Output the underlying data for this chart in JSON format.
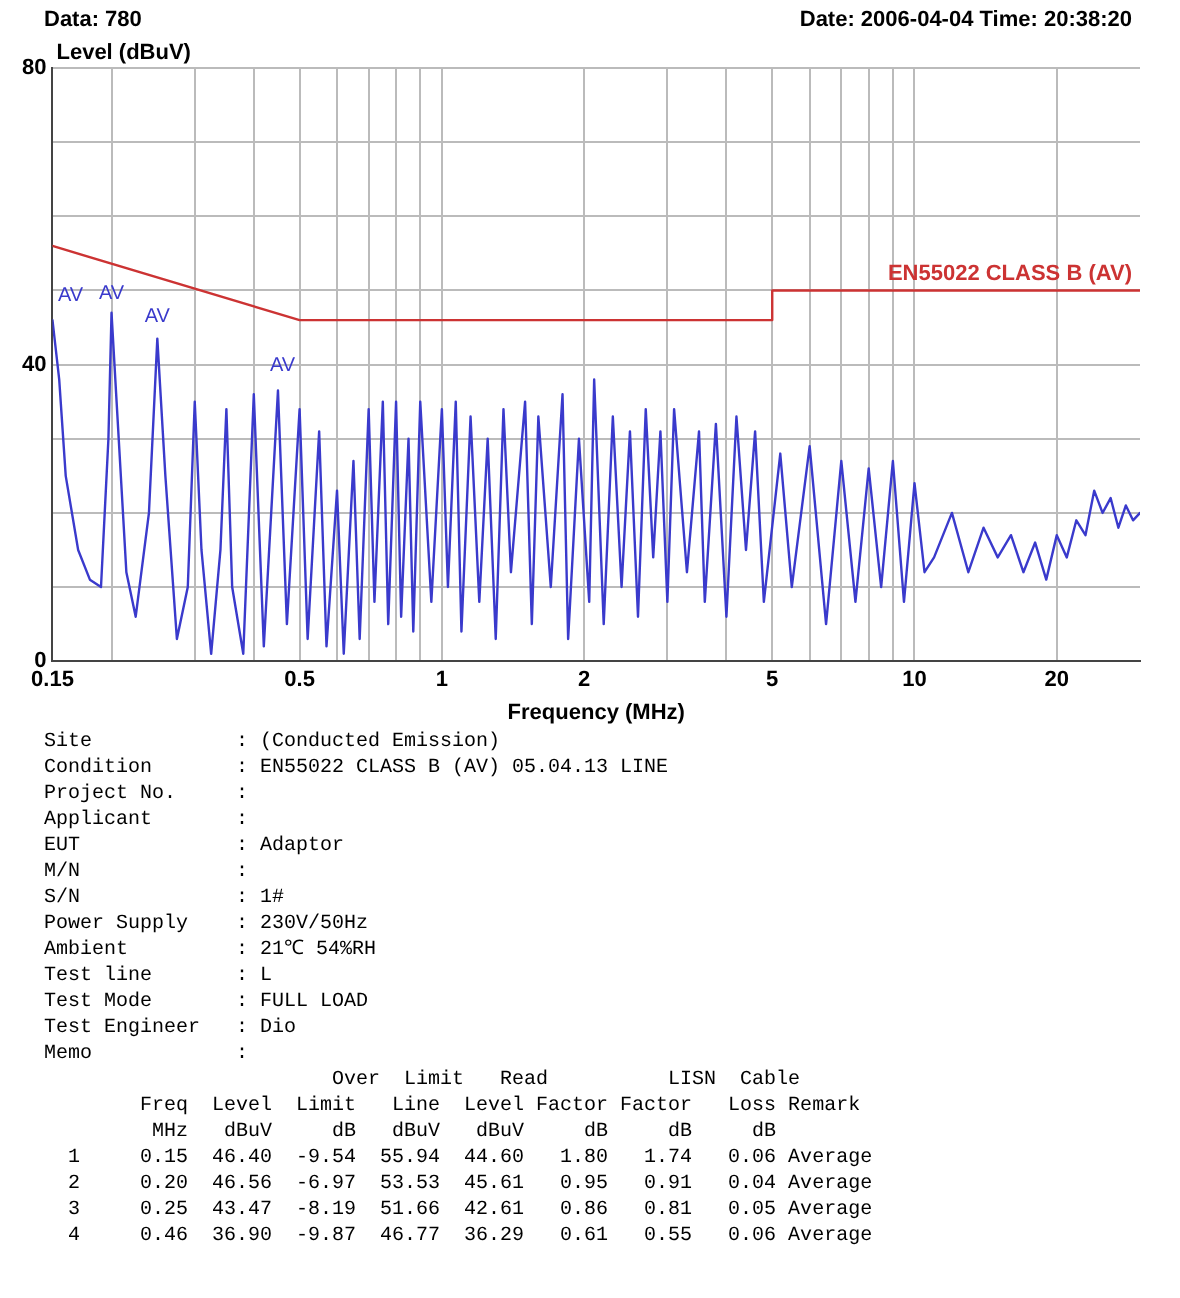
{
  "chart_data": {
    "type": "line",
    "title": "Data: 780",
    "subtitle": "Date: 2006-04-04  Time: 20:38:20",
    "xlabel": "Frequency (MHz)",
    "ylabel": "Level (dBuV)",
    "log": "x",
    "grid": true,
    "legend": false,
    "marker": "none",
    "xlim": [
      0.15,
      30
    ],
    "xticks": [
      0.15,
      {
        "value": 0.2,
        "label": null
      },
      {
        "value": 0.3,
        "label": null
      },
      {
        "value": 0.4,
        "label": null
      },
      0.5,
      {
        "value": 0.6,
        "label": null
      },
      {
        "value": 0.7,
        "label": null
      },
      {
        "value": 0.8,
        "label": null
      },
      {
        "value": 0.9,
        "label": null
      },
      1,
      2,
      {
        "value": 3,
        "label": null
      },
      {
        "value": 4,
        "label": null
      },
      5,
      {
        "value": 6,
        "label": null
      },
      {
        "value": 7,
        "label": null
      },
      {
        "value": 8,
        "label": null
      },
      {
        "value": 9,
        "label": null
      },
      10,
      20
    ],
    "ylim": [
      0,
      80
    ],
    "yticks": [
      0,
      {
        "value": 10,
        "label": null
      },
      {
        "value": 20,
        "label": null
      },
      {
        "value": 30,
        "label": null
      },
      40,
      {
        "value": 50,
        "label": null
      },
      {
        "value": 60,
        "label": null
      },
      {
        "value": 70,
        "label": null
      },
      80
    ],
    "series": [
      {
        "color": "#3a3acc",
        "x": [
          0.15,
          0.155,
          0.16,
          0.17,
          0.18,
          0.19,
          0.197,
          0.2,
          0.205,
          0.215,
          0.225,
          0.24,
          0.25,
          0.26,
          0.275,
          0.29,
          0.3,
          0.31,
          0.325,
          0.34,
          0.35,
          0.36,
          0.38,
          0.4,
          0.42,
          0.45,
          0.47,
          0.5,
          0.52,
          0.55,
          0.57,
          0.6,
          0.62,
          0.65,
          0.67,
          0.7,
          0.72,
          0.75,
          0.77,
          0.8,
          0.82,
          0.85,
          0.87,
          0.9,
          0.95,
          1.0,
          1.03,
          1.07,
          1.1,
          1.15,
          1.2,
          1.25,
          1.3,
          1.35,
          1.4,
          1.5,
          1.55,
          1.6,
          1.7,
          1.8,
          1.85,
          1.95,
          2.05,
          2.1,
          2.2,
          2.3,
          2.4,
          2.5,
          2.6,
          2.7,
          2.8,
          2.9,
          3.0,
          3.1,
          3.3,
          3.5,
          3.6,
          3.8,
          4.0,
          4.2,
          4.4,
          4.6,
          4.8,
          5.2,
          5.5,
          6.0,
          6.5,
          7.0,
          7.5,
          8.0,
          8.5,
          9.0,
          9.5,
          10,
          10.5,
          11,
          12,
          13,
          14,
          15,
          16,
          17,
          18,
          19,
          20,
          21,
          22,
          23,
          24,
          25,
          26,
          27,
          28,
          29,
          30
        ],
        "values": [
          46,
          38,
          25,
          15,
          11,
          10,
          30,
          47,
          35,
          12,
          6,
          20,
          43.5,
          25,
          3,
          10,
          35,
          15,
          1,
          15,
          34,
          10,
          1,
          36,
          2,
          36.5,
          5,
          34,
          3,
          31,
          2,
          23,
          1,
          27,
          3,
          34,
          8,
          35,
          5,
          35,
          6,
          30,
          4,
          35,
          8,
          34,
          10,
          35,
          4,
          33,
          8,
          30,
          3,
          34,
          12,
          35,
          5,
          33,
          10,
          36,
          3,
          30,
          8,
          38,
          5,
          33,
          10,
          31,
          6,
          34,
          14,
          31,
          8,
          34,
          12,
          31,
          8,
          32,
          6,
          33,
          15,
          31,
          8,
          28,
          10,
          29,
          5,
          27,
          8,
          26,
          10,
          27,
          8,
          24,
          12,
          14,
          20,
          12,
          18,
          14,
          17,
          12,
          16,
          11,
          17,
          14,
          19,
          17,
          23,
          20,
          22,
          18,
          21,
          19,
          20
        ]
      },
      {
        "name": "EN55022 CLASS B (AV)",
        "color": "#cc3333",
        "x": [
          0.15,
          0.5,
          5,
          5,
          30
        ],
        "values": [
          56,
          46,
          46,
          50,
          50
        ]
      }
    ],
    "annotations": [
      {
        "text": "AV",
        "x": 0.15,
        "y": 46.4
      },
      {
        "text": "AV",
        "x": 0.2,
        "y": 46.56
      },
      {
        "text": "AV",
        "x": 0.25,
        "y": 43.47
      },
      {
        "text": "AV",
        "x": 0.46,
        "y": 36.9
      },
      "Site            : (Conducted Emission)",
      "Condition       : EN55022 CLASS B (AV) 05.04.13 LINE",
      "Project No.     :",
      "Applicant       :",
      "EUT             : Adaptor",
      "M/N             :",
      "S/N             : 1#",
      "Power Supply    : 230V/50Hz",
      "Ambient         : 21℃ 54%RH",
      "Test line       : L",
      "Test Mode       : FULL LOAD",
      "Test Engineer   : Dio",
      "Memo            :",
      "                        Over  Limit   Read          LISN  Cable",
      "        Freq  Level  Limit   Line  Level Factor Factor   Loss Remark",
      "         MHz   dBuV     dB   dBuV   dBuV     dB     dB     dB",
      "  1     0.15  46.40  -9.54  55.94  44.60   1.80   1.74   0.06 Average",
      "  2     0.20  46.56  -6.97  53.53  45.61   0.95   0.91   0.04 Average",
      "  3     0.25  43.47  -8.19  51.66  42.61   0.86   0.81   0.05 Average",
      "  4     0.46  36.90  -9.87  46.77  36.29   0.61   0.55   0.06 Average"
    ]
  }
}
